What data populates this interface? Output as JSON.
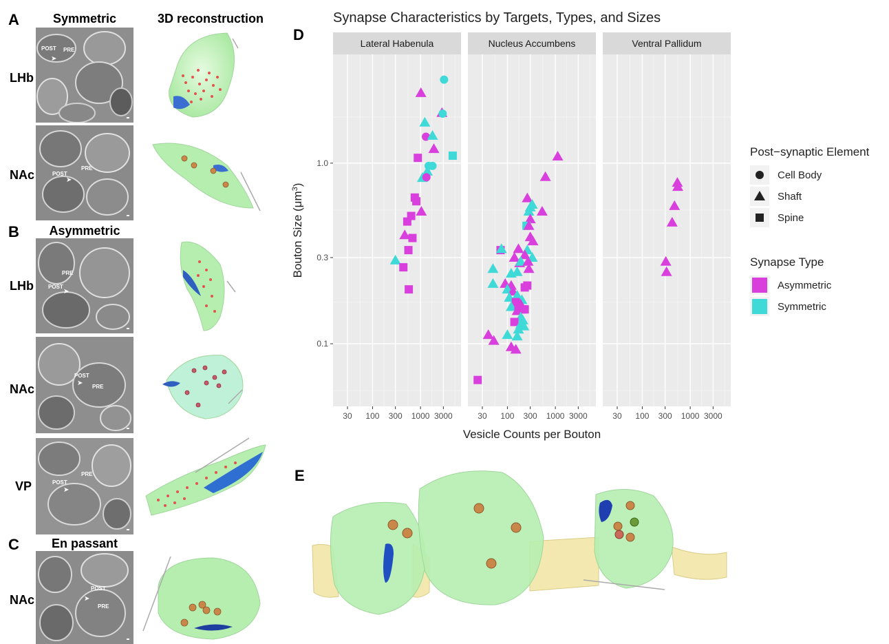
{
  "panels": {
    "A": {
      "letter": "A",
      "col_em": "Symmetric",
      "col_3d": "3D reconstruction",
      "rows": [
        "LHb",
        "NAc"
      ]
    },
    "B": {
      "letter": "B",
      "col_em": "Asymmetric",
      "rows": [
        "LHb",
        "NAc",
        "VP"
      ]
    },
    "C": {
      "letter": "C",
      "col_em": "En passant",
      "rows": [
        "NAc"
      ]
    },
    "D": {
      "letter": "D"
    },
    "E": {
      "letter": "E"
    }
  },
  "em_labels": {
    "pre": "PRE",
    "post": "POST"
  },
  "chart_data": {
    "type": "scatter",
    "title": "Synapse Characteristics by Targets, Types, and Sizes",
    "xlabel": "Vesicle Counts per Bouton",
    "ylabel": "Bouton Size (μm",
    "ylabel_sup": "3",
    "ylabel_end": ")",
    "x_scale": "log",
    "y_scale": "log",
    "xlim": [
      15,
      7000
    ],
    "ylim": [
      0.045,
      4.0
    ],
    "x_ticks": [
      30,
      100,
      300,
      1000,
      3000
    ],
    "x_tick_labels": [
      "30",
      "100",
      "300",
      "1000",
      "3000"
    ],
    "y_ticks": [
      0.1,
      0.3,
      1.0
    ],
    "y_tick_labels": [
      "0.1",
      "0.3",
      "1.0"
    ],
    "grid": true,
    "legend_position": "right",
    "facets": [
      "Lateral Habenula",
      "Nucleus Accumbens",
      "Ventral Pallidum"
    ],
    "legend": {
      "shape_title": "Post−synaptic Element",
      "shapes": [
        {
          "label": "Cell Body",
          "shape": "circle"
        },
        {
          "label": "Shaft",
          "shape": "triangle"
        },
        {
          "label": "Spine",
          "shape": "square"
        }
      ],
      "color_title": "Synapse Type",
      "colors": [
        {
          "label": "Asymmetric",
          "color": "#d83fdc"
        },
        {
          "label": "Symmetric",
          "color": "#3fdad8"
        }
      ]
    },
    "points": [
      {
        "f": 0,
        "x": 1020,
        "y": 2.45,
        "s": "triangle",
        "t": "Asymmetric"
      },
      {
        "f": 0,
        "x": 3100,
        "y": 2.9,
        "s": "circle",
        "t": "Symmetric"
      },
      {
        "f": 0,
        "x": 2800,
        "y": 1.9,
        "s": "triangle",
        "t": "Asymmetric"
      },
      {
        "f": 0,
        "x": 2900,
        "y": 1.88,
        "s": "circle",
        "t": "Symmetric"
      },
      {
        "f": 0,
        "x": 1230,
        "y": 1.68,
        "s": "triangle",
        "t": "Symmetric"
      },
      {
        "f": 0,
        "x": 1300,
        "y": 1.4,
        "s": "circle",
        "t": "Asymmetric"
      },
      {
        "f": 0,
        "x": 1780,
        "y": 1.42,
        "s": "triangle",
        "t": "Symmetric"
      },
      {
        "f": 0,
        "x": 1900,
        "y": 1.2,
        "s": "triangle",
        "t": "Asymmetric"
      },
      {
        "f": 0,
        "x": 4700,
        "y": 1.1,
        "s": "square",
        "t": "Symmetric"
      },
      {
        "f": 0,
        "x": 880,
        "y": 1.07,
        "s": "square",
        "t": "Asymmetric"
      },
      {
        "f": 0,
        "x": 1480,
        "y": 0.965,
        "s": "circle",
        "t": "Symmetric"
      },
      {
        "f": 0,
        "x": 1780,
        "y": 0.965,
        "s": "circle",
        "t": "Symmetric"
      },
      {
        "f": 0,
        "x": 1390,
        "y": 0.9,
        "s": "triangle",
        "t": "Symmetric"
      },
      {
        "f": 0,
        "x": 1100,
        "y": 0.83,
        "s": "triangle",
        "t": "Symmetric"
      },
      {
        "f": 0,
        "x": 1330,
        "y": 0.835,
        "s": "circle",
        "t": "Asymmetric"
      },
      {
        "f": 0,
        "x": 760,
        "y": 0.645,
        "s": "square",
        "t": "Asymmetric"
      },
      {
        "f": 0,
        "x": 820,
        "y": 0.615,
        "s": "square",
        "t": "Asymmetric"
      },
      {
        "f": 0,
        "x": 1040,
        "y": 0.54,
        "s": "triangle",
        "t": "Asymmetric"
      },
      {
        "f": 0,
        "x": 640,
        "y": 0.51,
        "s": "square",
        "t": "Asymmetric"
      },
      {
        "f": 0,
        "x": 530,
        "y": 0.475,
        "s": "square",
        "t": "Asymmetric"
      },
      {
        "f": 0,
        "x": 470,
        "y": 0.4,
        "s": "triangle",
        "t": "Asymmetric"
      },
      {
        "f": 0,
        "x": 680,
        "y": 0.385,
        "s": "square",
        "t": "Asymmetric"
      },
      {
        "f": 0,
        "x": 560,
        "y": 0.33,
        "s": "square",
        "t": "Asymmetric"
      },
      {
        "f": 0,
        "x": 300,
        "y": 0.29,
        "s": "triangle",
        "t": "Symmetric"
      },
      {
        "f": 0,
        "x": 440,
        "y": 0.265,
        "s": "square",
        "t": "Asymmetric"
      },
      {
        "f": 0,
        "x": 570,
        "y": 0.2,
        "s": "square",
        "t": "Asymmetric"
      },
      {
        "f": 1,
        "x": 1120,
        "y": 1.09,
        "s": "triangle",
        "t": "Asymmetric"
      },
      {
        "f": 1,
        "x": 620,
        "y": 0.84,
        "s": "triangle",
        "t": "Asymmetric"
      },
      {
        "f": 1,
        "x": 260,
        "y": 0.64,
        "s": "triangle",
        "t": "Asymmetric"
      },
      {
        "f": 1,
        "x": 330,
        "y": 0.59,
        "s": "triangle",
        "t": "Symmetric"
      },
      {
        "f": 1,
        "x": 300,
        "y": 0.57,
        "s": "triangle",
        "t": "Symmetric"
      },
      {
        "f": 1,
        "x": 280,
        "y": 0.54,
        "s": "triangle",
        "t": "Symmetric"
      },
      {
        "f": 1,
        "x": 530,
        "y": 0.54,
        "s": "triangle",
        "t": "Asymmetric"
      },
      {
        "f": 1,
        "x": 300,
        "y": 0.49,
        "s": "triangle",
        "t": "Asymmetric"
      },
      {
        "f": 1,
        "x": 250,
        "y": 0.45,
        "s": "square",
        "t": "Symmetric"
      },
      {
        "f": 1,
        "x": 280,
        "y": 0.45,
        "s": "triangle",
        "t": "Asymmetric"
      },
      {
        "f": 1,
        "x": 300,
        "y": 0.39,
        "s": "triangle",
        "t": "Asymmetric"
      },
      {
        "f": 1,
        "x": 340,
        "y": 0.37,
        "s": "triangle",
        "t": "Asymmetric"
      },
      {
        "f": 1,
        "x": 72,
        "y": 0.33,
        "s": "square",
        "t": "Asymmetric"
      },
      {
        "f": 1,
        "x": 75,
        "y": 0.335,
        "s": "triangle",
        "t": "Symmetric"
      },
      {
        "f": 1,
        "x": 170,
        "y": 0.335,
        "s": "triangle",
        "t": "Asymmetric"
      },
      {
        "f": 1,
        "x": 260,
        "y": 0.33,
        "s": "triangle",
        "t": "Symmetric"
      },
      {
        "f": 1,
        "x": 230,
        "y": 0.31,
        "s": "triangle",
        "t": "Asymmetric"
      },
      {
        "f": 1,
        "x": 140,
        "y": 0.3,
        "s": "triangle",
        "t": "Asymmetric"
      },
      {
        "f": 1,
        "x": 330,
        "y": 0.3,
        "s": "triangle",
        "t": "Symmetric"
      },
      {
        "f": 1,
        "x": 180,
        "y": 0.28,
        "s": "triangle",
        "t": "Asymmetric"
      },
      {
        "f": 1,
        "x": 190,
        "y": 0.285,
        "s": "triangle",
        "t": "Symmetric"
      },
      {
        "f": 1,
        "x": 270,
        "y": 0.285,
        "s": "triangle",
        "t": "Asymmetric"
      },
      {
        "f": 1,
        "x": 280,
        "y": 0.26,
        "s": "triangle",
        "t": "Asymmetric"
      },
      {
        "f": 1,
        "x": 50,
        "y": 0.26,
        "s": "triangle",
        "t": "Symmetric"
      },
      {
        "f": 1,
        "x": 160,
        "y": 0.25,
        "s": "triangle",
        "t": "Symmetric"
      },
      {
        "f": 1,
        "x": 120,
        "y": 0.245,
        "s": "triangle",
        "t": "Symmetric"
      },
      {
        "f": 1,
        "x": 50,
        "y": 0.215,
        "s": "triangle",
        "t": "Symmetric"
      },
      {
        "f": 1,
        "x": 90,
        "y": 0.215,
        "s": "triangle",
        "t": "Asymmetric"
      },
      {
        "f": 1,
        "x": 120,
        "y": 0.21,
        "s": "triangle",
        "t": "Asymmetric"
      },
      {
        "f": 1,
        "x": 260,
        "y": 0.21,
        "s": "square",
        "t": "Asymmetric"
      },
      {
        "f": 1,
        "x": 230,
        "y": 0.205,
        "s": "square",
        "t": "Asymmetric"
      },
      {
        "f": 1,
        "x": 100,
        "y": 0.2,
        "s": "triangle",
        "t": "Symmetric"
      },
      {
        "f": 1,
        "x": 130,
        "y": 0.195,
        "s": "triangle",
        "t": "Asymmetric"
      },
      {
        "f": 1,
        "x": 160,
        "y": 0.185,
        "s": "triangle",
        "t": "Symmetric"
      },
      {
        "f": 1,
        "x": 110,
        "y": 0.18,
        "s": "triangle",
        "t": "Symmetric"
      },
      {
        "f": 1,
        "x": 200,
        "y": 0.175,
        "s": "triangle",
        "t": "Symmetric"
      },
      {
        "f": 1,
        "x": 150,
        "y": 0.17,
        "s": "square",
        "t": "Asymmetric"
      },
      {
        "f": 1,
        "x": 190,
        "y": 0.165,
        "s": "triangle",
        "t": "Asymmetric"
      },
      {
        "f": 1,
        "x": 120,
        "y": 0.16,
        "s": "triangle",
        "t": "Symmetric"
      },
      {
        "f": 1,
        "x": 170,
        "y": 0.16,
        "s": "square",
        "t": "Asymmetric"
      },
      {
        "f": 1,
        "x": 210,
        "y": 0.155,
        "s": "square",
        "t": "Asymmetric"
      },
      {
        "f": 1,
        "x": 230,
        "y": 0.155,
        "s": "square",
        "t": "Asymmetric"
      },
      {
        "f": 1,
        "x": 160,
        "y": 0.152,
        "s": "triangle",
        "t": "Asymmetric"
      },
      {
        "f": 1,
        "x": 190,
        "y": 0.14,
        "s": "triangle",
        "t": "Symmetric"
      },
      {
        "f": 1,
        "x": 210,
        "y": 0.135,
        "s": "triangle",
        "t": "Symmetric"
      },
      {
        "f": 1,
        "x": 140,
        "y": 0.132,
        "s": "square",
        "t": "Asymmetric"
      },
      {
        "f": 1,
        "x": 190,
        "y": 0.128,
        "s": "triangle",
        "t": "Symmetric"
      },
      {
        "f": 1,
        "x": 220,
        "y": 0.125,
        "s": "triangle",
        "t": "Symmetric"
      },
      {
        "f": 1,
        "x": 170,
        "y": 0.12,
        "s": "triangle",
        "t": "Symmetric"
      },
      {
        "f": 1,
        "x": 40,
        "y": 0.112,
        "s": "triangle",
        "t": "Asymmetric"
      },
      {
        "f": 1,
        "x": 100,
        "y": 0.112,
        "s": "triangle",
        "t": "Symmetric"
      },
      {
        "f": 1,
        "x": 160,
        "y": 0.11,
        "s": "triangle",
        "t": "Symmetric"
      },
      {
        "f": 1,
        "x": 52,
        "y": 0.104,
        "s": "triangle",
        "t": "Asymmetric"
      },
      {
        "f": 1,
        "x": 120,
        "y": 0.096,
        "s": "triangle",
        "t": "Asymmetric"
      },
      {
        "f": 1,
        "x": 150,
        "y": 0.093,
        "s": "triangle",
        "t": "Asymmetric"
      },
      {
        "f": 1,
        "x": 24,
        "y": 0.063,
        "s": "square",
        "t": "Asymmetric"
      },
      {
        "f": 2,
        "x": 540,
        "y": 0.78,
        "s": "triangle",
        "t": "Asymmetric"
      },
      {
        "f": 2,
        "x": 550,
        "y": 0.74,
        "s": "triangle",
        "t": "Asymmetric"
      },
      {
        "f": 2,
        "x": 470,
        "y": 0.58,
        "s": "triangle",
        "t": "Asymmetric"
      },
      {
        "f": 2,
        "x": 420,
        "y": 0.47,
        "s": "triangle",
        "t": "Asymmetric"
      },
      {
        "f": 2,
        "x": 310,
        "y": 0.285,
        "s": "triangle",
        "t": "Asymmetric"
      },
      {
        "f": 2,
        "x": 320,
        "y": 0.25,
        "s": "triangle",
        "t": "Asymmetric"
      }
    ]
  }
}
